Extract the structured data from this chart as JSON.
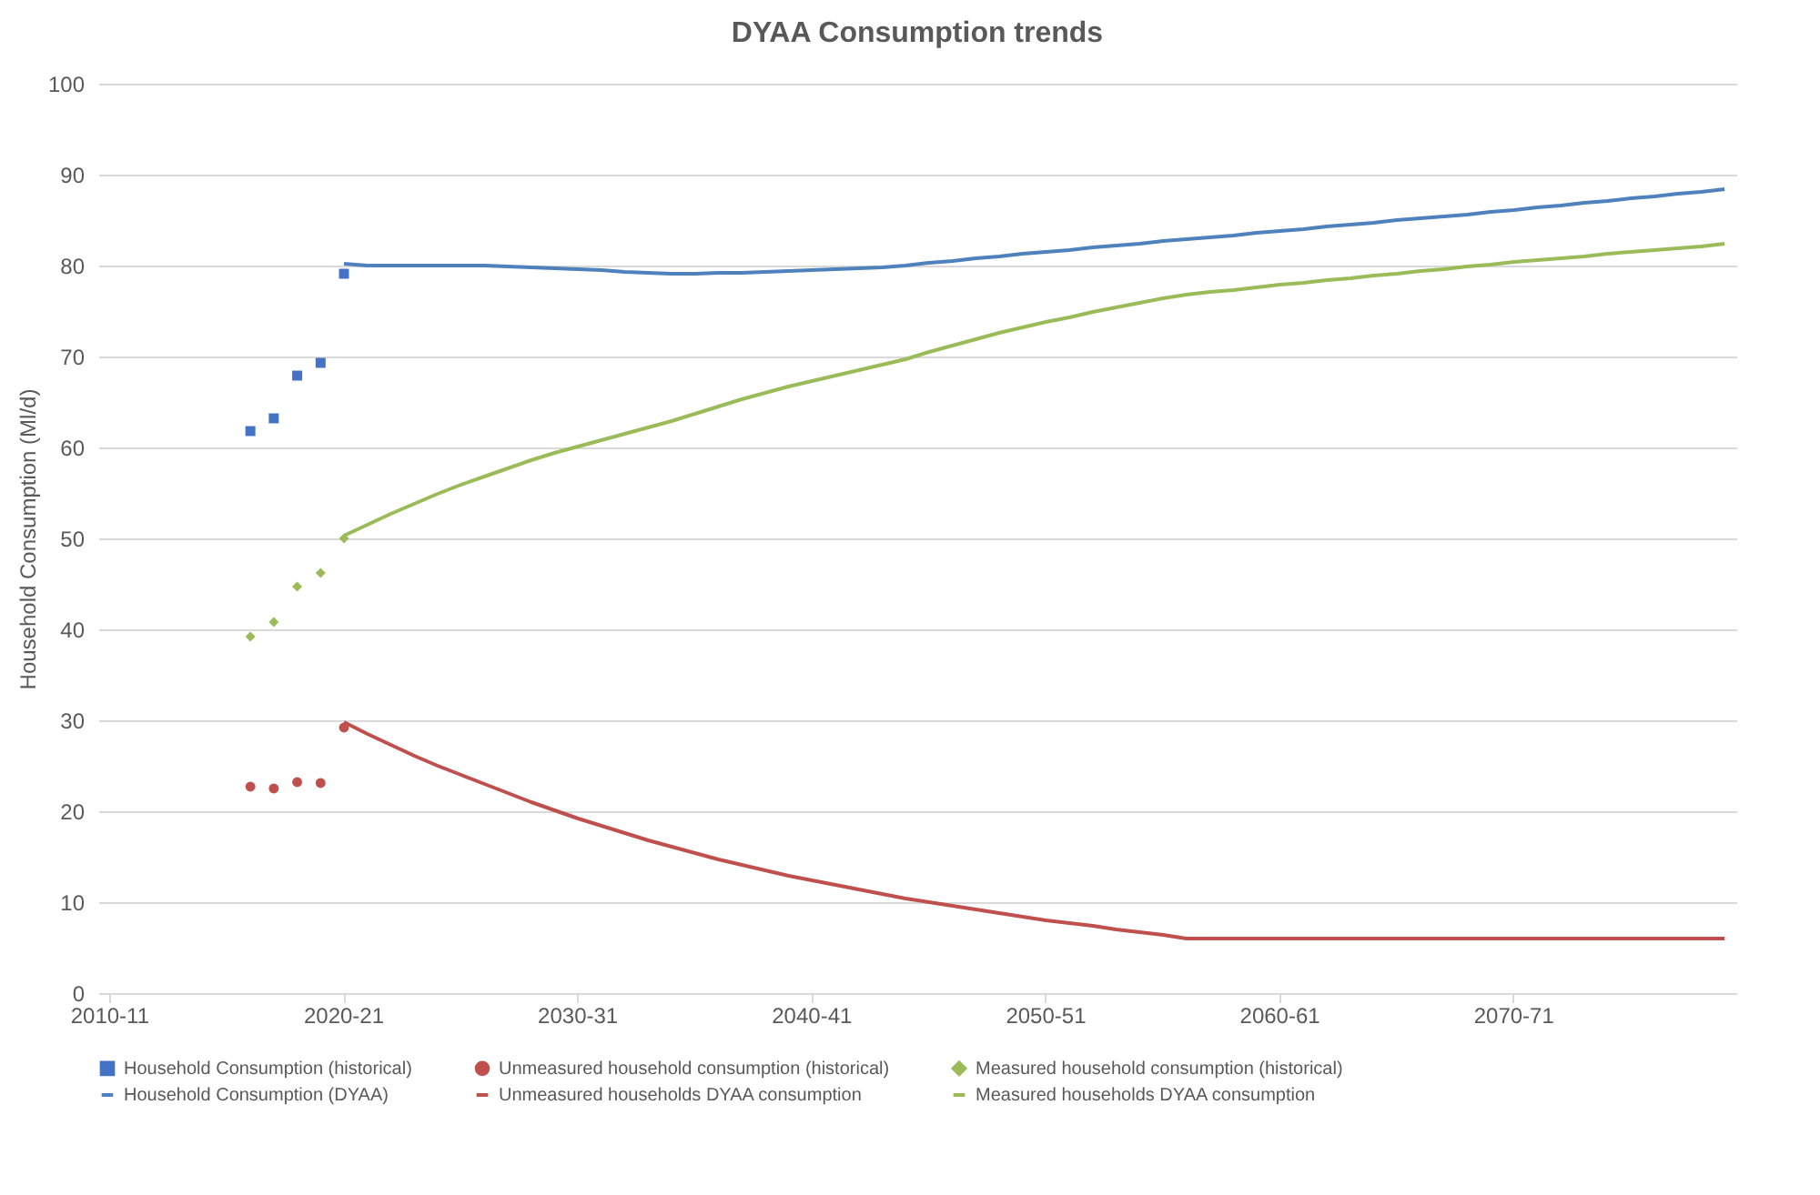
{
  "chart_data": {
    "type": "line",
    "title": "DYAA Consumption trends",
    "ylabel": "Household Consumption (Ml/d)",
    "categories": [
      "2010-11",
      null,
      null,
      null,
      null,
      null,
      null,
      null,
      null,
      null,
      "2020-21",
      null,
      null,
      null,
      null,
      null,
      null,
      null,
      null,
      null,
      "2030-31",
      null,
      null,
      null,
      null,
      null,
      null,
      null,
      null,
      null,
      "2040-41",
      null,
      null,
      null,
      null,
      null,
      null,
      null,
      null,
      null,
      "2050-51",
      null,
      null,
      null,
      null,
      null,
      null,
      null,
      null,
      null,
      "2060-61",
      null,
      null,
      null,
      null,
      null,
      null,
      null,
      null,
      null,
      "2070-71",
      null,
      null,
      null,
      null,
      null,
      null,
      null,
      null,
      null
    ],
    "ylim": [
      0,
      100
    ],
    "yticks": [
      0,
      10,
      20,
      30,
      40,
      50,
      60,
      70,
      80,
      90,
      100
    ],
    "grid": "y",
    "legend": "bottom",
    "series": [
      {
        "name": "Household Consumption (historical)",
        "type": "scatter",
        "marker": "square",
        "color": "#4472c4",
        "values": [
          null,
          null,
          null,
          null,
          null,
          null,
          61.8,
          63.2,
          67.9,
          69.3,
          79.1,
          null,
          null,
          null,
          null,
          null,
          null,
          null,
          null,
          null,
          null,
          null,
          null,
          null,
          null,
          null,
          null,
          null,
          null,
          null,
          null,
          null,
          null,
          null,
          null,
          null,
          null,
          null,
          null,
          null,
          null,
          null,
          null,
          null,
          null,
          null,
          null,
          null,
          null,
          null,
          null,
          null,
          null,
          null,
          null,
          null,
          null,
          null,
          null,
          null,
          null,
          null,
          null,
          null,
          null,
          null,
          null,
          null,
          null,
          null
        ]
      },
      {
        "name": "Unmeasured household consumption (historical)",
        "type": "scatter",
        "marker": "circle",
        "color": "#c0504d",
        "values": [
          null,
          null,
          null,
          null,
          null,
          null,
          22.7,
          22.5,
          23.2,
          23.1,
          29.2,
          null,
          null,
          null,
          null,
          null,
          null,
          null,
          null,
          null,
          null,
          null,
          null,
          null,
          null,
          null,
          null,
          null,
          null,
          null,
          null,
          null,
          null,
          null,
          null,
          null,
          null,
          null,
          null,
          null,
          null,
          null,
          null,
          null,
          null,
          null,
          null,
          null,
          null,
          null,
          null,
          null,
          null,
          null,
          null,
          null,
          null,
          null,
          null,
          null,
          null,
          null,
          null,
          null,
          null,
          null,
          null,
          null,
          null,
          null
        ]
      },
      {
        "name": "Measured household consumption (historical)",
        "type": "scatter",
        "marker": "diamond",
        "color": "#9bbb59",
        "values": [
          null,
          null,
          null,
          null,
          null,
          null,
          39.2,
          40.8,
          44.7,
          46.2,
          50.0,
          null,
          null,
          null,
          null,
          null,
          null,
          null,
          null,
          null,
          null,
          null,
          null,
          null,
          null,
          null,
          null,
          null,
          null,
          null,
          null,
          null,
          null,
          null,
          null,
          null,
          null,
          null,
          null,
          null,
          null,
          null,
          null,
          null,
          null,
          null,
          null,
          null,
          null,
          null,
          null,
          null,
          null,
          null,
          null,
          null,
          null,
          null,
          null,
          null,
          null,
          null,
          null,
          null,
          null,
          null,
          null,
          null,
          null,
          null
        ]
      },
      {
        "name": "Household Consumption (DYAA)",
        "color": "#4f81bd",
        "values": [
          null,
          null,
          null,
          null,
          null,
          null,
          null,
          null,
          null,
          null,
          80.2,
          80.0,
          80.0,
          80.0,
          80.0,
          80.0,
          80.0,
          79.9,
          79.8,
          79.7,
          79.6,
          79.5,
          79.3,
          79.2,
          79.1,
          79.1,
          79.2,
          79.2,
          79.3,
          79.4,
          79.5,
          79.6,
          79.7,
          79.8,
          80.0,
          80.3,
          80.5,
          80.8,
          81.0,
          81.3,
          81.5,
          81.7,
          82.0,
          82.2,
          82.4,
          82.7,
          82.9,
          83.1,
          83.3,
          83.6,
          83.8,
          84.0,
          84.3,
          84.5,
          84.7,
          85.0,
          85.2,
          85.4,
          85.6,
          85.9,
          86.1,
          86.4,
          86.6,
          86.9,
          87.1,
          87.4,
          87.6,
          87.9,
          88.1,
          88.4
        ]
      },
      {
        "name": "Unmeasured households DYAA consumption",
        "color": "#c0504d",
        "values": [
          null,
          null,
          null,
          null,
          null,
          null,
          null,
          null,
          null,
          null,
          29.8,
          28.5,
          27.3,
          26.1,
          25.0,
          24.0,
          23.0,
          22.0,
          21.0,
          20.1,
          19.2,
          18.4,
          17.6,
          16.8,
          16.1,
          15.4,
          14.7,
          14.1,
          13.5,
          12.9,
          12.4,
          11.9,
          11.4,
          10.9,
          10.4,
          10.0,
          9.6,
          9.2,
          8.8,
          8.4,
          8.0,
          7.7,
          7.4,
          7.0,
          6.7,
          6.4,
          6.0,
          6.0,
          6.0,
          6.0,
          6.0,
          6.0,
          6.0,
          6.0,
          6.0,
          6.0,
          6.0,
          6.0,
          6.0,
          6.0,
          6.0,
          6.0,
          6.0,
          6.0,
          6.0,
          6.0,
          6.0,
          6.0,
          6.0,
          6.0
        ]
      },
      {
        "name": "Measured households DYAA consumption",
        "color": "#9bbb59",
        "values": [
          null,
          null,
          null,
          null,
          null,
          null,
          null,
          null,
          null,
          null,
          50.3,
          51.5,
          52.7,
          53.8,
          54.9,
          55.9,
          56.8,
          57.7,
          58.6,
          59.4,
          60.1,
          60.8,
          61.5,
          62.2,
          62.9,
          63.7,
          64.5,
          65.3,
          66.0,
          66.7,
          67.3,
          67.9,
          68.5,
          69.1,
          69.7,
          70.5,
          71.2,
          71.9,
          72.6,
          73.2,
          73.8,
          74.3,
          74.9,
          75.4,
          75.9,
          76.4,
          76.8,
          77.1,
          77.3,
          77.6,
          77.9,
          78.1,
          78.4,
          78.6,
          78.9,
          79.1,
          79.4,
          79.6,
          79.9,
          80.1,
          80.4,
          80.6,
          80.8,
          81.0,
          81.3,
          81.5,
          81.7,
          81.9,
          82.1,
          82.4
        ]
      }
    ]
  }
}
